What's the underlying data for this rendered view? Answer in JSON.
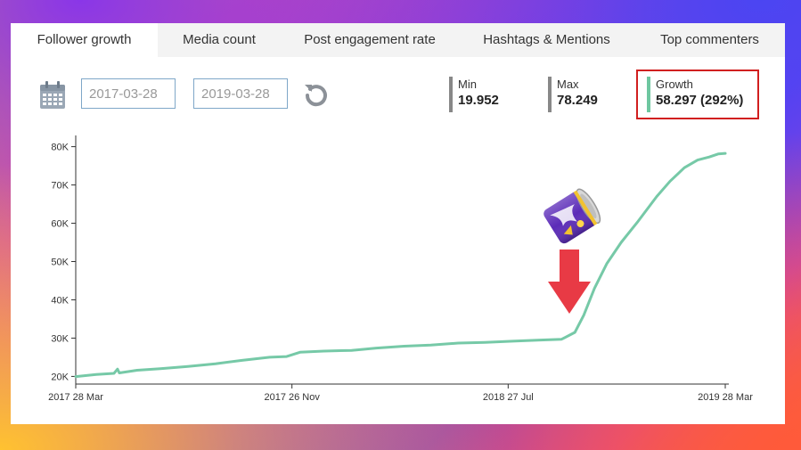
{
  "tabs": [
    {
      "label": "Follower growth",
      "active": true
    },
    {
      "label": "Media count",
      "active": false
    },
    {
      "label": "Post engagement rate",
      "active": false
    },
    {
      "label": "Hashtags & Mentions",
      "active": false
    },
    {
      "label": "Top commenters",
      "active": false
    }
  ],
  "toolbar": {
    "calendar_icon": "calendar-icon",
    "start_date": "2017-03-28",
    "end_date": "2019-03-28",
    "reset_icon": "refresh-icon"
  },
  "stats": {
    "min": {
      "label": "Min",
      "value": "19.952",
      "color": "#888888"
    },
    "max": {
      "label": "Max",
      "value": "78.249",
      "color": "#888888"
    },
    "growth": {
      "label": "Growth",
      "value": "58.297 (292%)",
      "color": "#6ec7a0"
    }
  },
  "colors": {
    "line": "#76c9a7",
    "highlight": "#d11f1f",
    "arrow": "#e83a45"
  },
  "decorations": {
    "can_icon": "soda-can-icon",
    "arrow_icon": "down-arrow-icon"
  },
  "chart_data": {
    "type": "line",
    "title": "",
    "xlabel": "",
    "ylabel": "",
    "x_ticks": [
      "2017 28 Mar",
      "2017 26 Nov",
      "2018 27 Jul",
      "2019 28 Mar"
    ],
    "y_ticks": [
      "20K",
      "30K",
      "40K",
      "50K",
      "60K",
      "70K",
      "80K"
    ],
    "xlim": [
      "2017-03-28",
      "2019-03-28"
    ],
    "ylim": [
      18000,
      82000
    ],
    "grid": false,
    "series": [
      {
        "points": [
          [
            "2017-03-28",
            19952
          ],
          [
            "2017-04-20",
            20500
          ],
          [
            "2017-05-10",
            20800
          ],
          [
            "2017-05-14",
            21900
          ],
          [
            "2017-05-16",
            20900
          ],
          [
            "2017-06-05",
            21600
          ],
          [
            "2017-07-01",
            22000
          ],
          [
            "2017-08-01",
            22600
          ],
          [
            "2017-09-01",
            23300
          ],
          [
            "2017-10-01",
            24200
          ],
          [
            "2017-11-01",
            25000
          ],
          [
            "2017-11-20",
            25200
          ],
          [
            "2017-12-05",
            26300
          ],
          [
            "2018-01-01",
            26600
          ],
          [
            "2018-02-01",
            26800
          ],
          [
            "2018-03-01",
            27400
          ],
          [
            "2018-04-01",
            27900
          ],
          [
            "2018-05-01",
            28200
          ],
          [
            "2018-06-01",
            28700
          ],
          [
            "2018-07-01",
            28900
          ],
          [
            "2018-08-01",
            29200
          ],
          [
            "2018-09-01",
            29500
          ],
          [
            "2018-09-25",
            29700
          ],
          [
            "2018-10-10",
            31500
          ],
          [
            "2018-10-20",
            36000
          ],
          [
            "2018-11-01",
            43000
          ],
          [
            "2018-11-15",
            49500
          ],
          [
            "2018-12-01",
            55000
          ],
          [
            "2018-12-20",
            60500
          ],
          [
            "2019-01-10",
            67000
          ],
          [
            "2019-01-25",
            71000
          ],
          [
            "2019-02-10",
            74500
          ],
          [
            "2019-02-25",
            76500
          ],
          [
            "2019-03-10",
            77300
          ],
          [
            "2019-03-20",
            78100
          ],
          [
            "2019-03-28",
            78249
          ]
        ]
      }
    ]
  }
}
